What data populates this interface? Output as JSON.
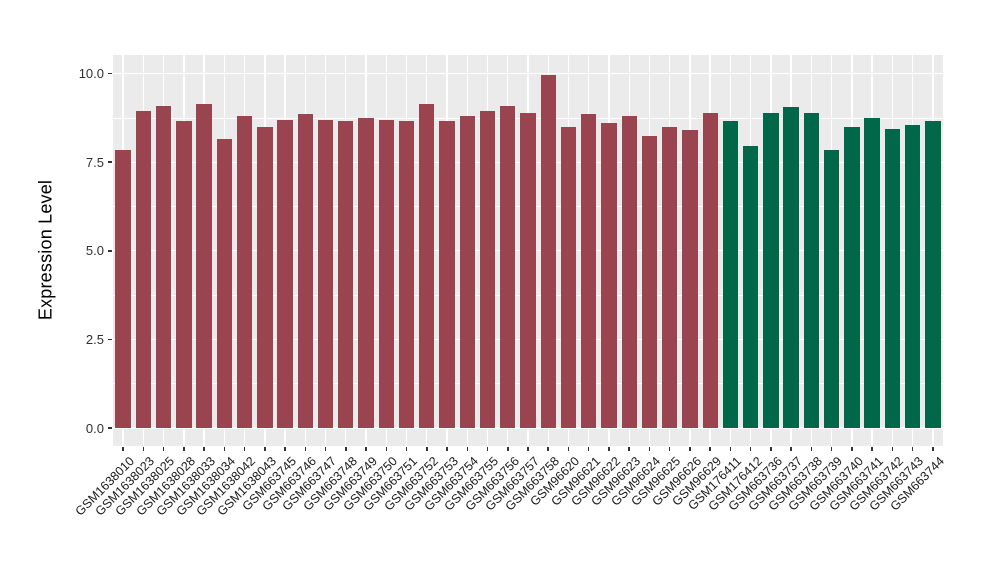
{
  "figure": {
    "background": "#FFFFFF",
    "panel_background": "#EBEBEB",
    "grid_color": "#FFFFFF",
    "axis_text_color": "#303030",
    "axis_title_color": "#000000"
  },
  "chart_data": {
    "type": "bar",
    "title": "",
    "xlabel": "",
    "ylabel": "Expression Level",
    "ylim": [
      0,
      10.5
    ],
    "grid": true,
    "legend_position": "none",
    "y_ticks": [
      0.0,
      2.5,
      5.0,
      7.5,
      10.0
    ],
    "y_tick_labels": [
      "0.0",
      "2.5",
      "5.0",
      "7.5",
      "10.0"
    ],
    "y_minor_ticks": [
      1.25,
      3.75,
      6.25,
      8.75
    ],
    "group_colors": {
      "group1": "#9A4450",
      "group2": "#006748"
    },
    "categories": [
      "GSM1638010",
      "GSM1638023",
      "GSM1638025",
      "GSM1638028",
      "GSM1638033",
      "GSM1638034",
      "GSM1638042",
      "GSM1638043",
      "GSM663745",
      "GSM663746",
      "GSM663747",
      "GSM663748",
      "GSM663749",
      "GSM663750",
      "GSM663751",
      "GSM663752",
      "GSM663753",
      "GSM663754",
      "GSM663755",
      "GSM663756",
      "GSM663757",
      "GSM663758",
      "GSM96620",
      "GSM96621",
      "GSM96622",
      "GSM96623",
      "GSM96624",
      "GSM96625",
      "GSM96626",
      "GSM96629",
      "GSM176411",
      "GSM176412",
      "GSM663736",
      "GSM663737",
      "GSM663738",
      "GSM663739",
      "GSM663740",
      "GSM663741",
      "GSM663742",
      "GSM663743",
      "GSM663744"
    ],
    "values": [
      7.85,
      8.95,
      9.1,
      8.65,
      9.15,
      8.15,
      8.8,
      8.5,
      8.7,
      8.85,
      8.7,
      8.65,
      8.75,
      8.7,
      8.65,
      9.15,
      8.65,
      8.8,
      8.95,
      9.1,
      8.9,
      9.95,
      8.5,
      8.85,
      8.6,
      8.8,
      8.25,
      8.5,
      8.4,
      8.9,
      8.65,
      7.95,
      8.9,
      9.05,
      8.9,
      7.85,
      8.5,
      8.75,
      8.45,
      8.55,
      8.65
    ],
    "groups": [
      "group1",
      "group1",
      "group1",
      "group1",
      "group1",
      "group1",
      "group1",
      "group1",
      "group1",
      "group1",
      "group1",
      "group1",
      "group1",
      "group1",
      "group1",
      "group1",
      "group1",
      "group1",
      "group1",
      "group1",
      "group1",
      "group1",
      "group1",
      "group1",
      "group1",
      "group1",
      "group1",
      "group1",
      "group1",
      "group1",
      "group2",
      "group2",
      "group2",
      "group2",
      "group2",
      "group2",
      "group2",
      "group2",
      "group2",
      "group2",
      "group2"
    ]
  }
}
